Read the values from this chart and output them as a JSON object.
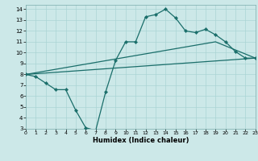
{
  "xlabel": "Humidex (Indice chaleur)",
  "background_color": "#cce8e8",
  "grid_color": "#aad4d4",
  "line_color": "#1a6e6a",
  "xlim": [
    0,
    23
  ],
  "ylim": [
    3,
    14.4
  ],
  "xticks": [
    0,
    1,
    2,
    3,
    4,
    5,
    6,
    7,
    8,
    9,
    10,
    11,
    12,
    13,
    14,
    15,
    16,
    17,
    18,
    19,
    20,
    21,
    22,
    23
  ],
  "yticks": [
    3,
    4,
    5,
    6,
    7,
    8,
    9,
    10,
    11,
    12,
    13,
    14
  ],
  "line1_x": [
    0,
    1,
    2,
    3,
    4,
    5,
    6,
    7,
    8,
    9,
    10,
    11,
    12,
    13,
    14,
    15,
    16,
    17,
    18,
    19,
    20,
    21,
    22,
    23
  ],
  "line1_y": [
    8.0,
    7.8,
    7.2,
    6.6,
    6.6,
    4.7,
    3.1,
    2.85,
    6.4,
    9.3,
    11.0,
    11.0,
    13.3,
    13.5,
    14.0,
    13.2,
    12.0,
    11.85,
    12.15,
    11.65,
    11.0,
    10.1,
    9.5,
    9.5
  ],
  "line2_x": [
    0,
    23
  ],
  "line2_y": [
    8.0,
    9.5
  ],
  "line3_x": [
    0,
    19,
    23
  ],
  "line3_y": [
    8.0,
    11.0,
    9.5
  ]
}
